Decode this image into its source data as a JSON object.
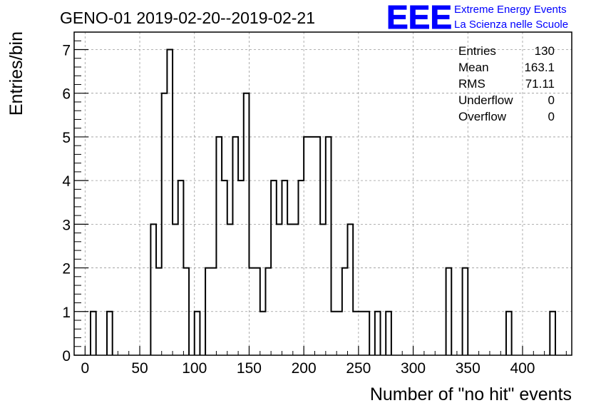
{
  "title": "GENO-01 2019-02-20--2019-02-21",
  "logo": {
    "letters": "EEE",
    "line1": "Extreme Energy Events",
    "line2": "La Scienza nelle Scuole",
    "color": "#0000ff"
  },
  "stats": [
    {
      "label": "Entries",
      "value": "130"
    },
    {
      "label": "Mean",
      "value": "163.1"
    },
    {
      "label": "RMS",
      "value": "71.11"
    },
    {
      "label": "Underflow",
      "value": "0"
    },
    {
      "label": "Overflow",
      "value": "0"
    }
  ],
  "chart_data": {
    "type": "bar",
    "style": "step-histogram",
    "xlabel": "Number of \"no hit\" events",
    "ylabel": "Entries/bin",
    "xlim": [
      -10,
      445
    ],
    "ylim": [
      0,
      7.4
    ],
    "bin_width": 5,
    "x_ticks": [
      0,
      50,
      100,
      150,
      200,
      250,
      300,
      350,
      400
    ],
    "y_ticks": [
      0,
      1,
      2,
      3,
      4,
      5,
      6,
      7
    ],
    "grid": true,
    "line_color": "#000000",
    "bins": [
      {
        "x": 5,
        "y": 1
      },
      {
        "x": 20,
        "y": 1
      },
      {
        "x": 60,
        "y": 3
      },
      {
        "x": 65,
        "y": 2
      },
      {
        "x": 70,
        "y": 6
      },
      {
        "x": 75,
        "y": 7
      },
      {
        "x": 80,
        "y": 3
      },
      {
        "x": 85,
        "y": 4
      },
      {
        "x": 90,
        "y": 2
      },
      {
        "x": 100,
        "y": 1
      },
      {
        "x": 110,
        "y": 2
      },
      {
        "x": 115,
        "y": 2
      },
      {
        "x": 120,
        "y": 5
      },
      {
        "x": 125,
        "y": 4
      },
      {
        "x": 130,
        "y": 3
      },
      {
        "x": 135,
        "y": 5
      },
      {
        "x": 140,
        "y": 4
      },
      {
        "x": 145,
        "y": 6
      },
      {
        "x": 150,
        "y": 2
      },
      {
        "x": 155,
        "y": 2
      },
      {
        "x": 160,
        "y": 1
      },
      {
        "x": 165,
        "y": 2
      },
      {
        "x": 170,
        "y": 4
      },
      {
        "x": 175,
        "y": 3
      },
      {
        "x": 180,
        "y": 4
      },
      {
        "x": 185,
        "y": 3
      },
      {
        "x": 190,
        "y": 3
      },
      {
        "x": 195,
        "y": 4
      },
      {
        "x": 200,
        "y": 5
      },
      {
        "x": 205,
        "y": 5
      },
      {
        "x": 210,
        "y": 5
      },
      {
        "x": 215,
        "y": 3
      },
      {
        "x": 220,
        "y": 5
      },
      {
        "x": 225,
        "y": 1
      },
      {
        "x": 230,
        "y": 1
      },
      {
        "x": 235,
        "y": 2
      },
      {
        "x": 240,
        "y": 3
      },
      {
        "x": 245,
        "y": 1
      },
      {
        "x": 250,
        "y": 1
      },
      {
        "x": 255,
        "y": 1
      },
      {
        "x": 265,
        "y": 1
      },
      {
        "x": 275,
        "y": 1
      },
      {
        "x": 330,
        "y": 2
      },
      {
        "x": 345,
        "y": 2
      },
      {
        "x": 385,
        "y": 1
      },
      {
        "x": 425,
        "y": 1
      }
    ]
  }
}
